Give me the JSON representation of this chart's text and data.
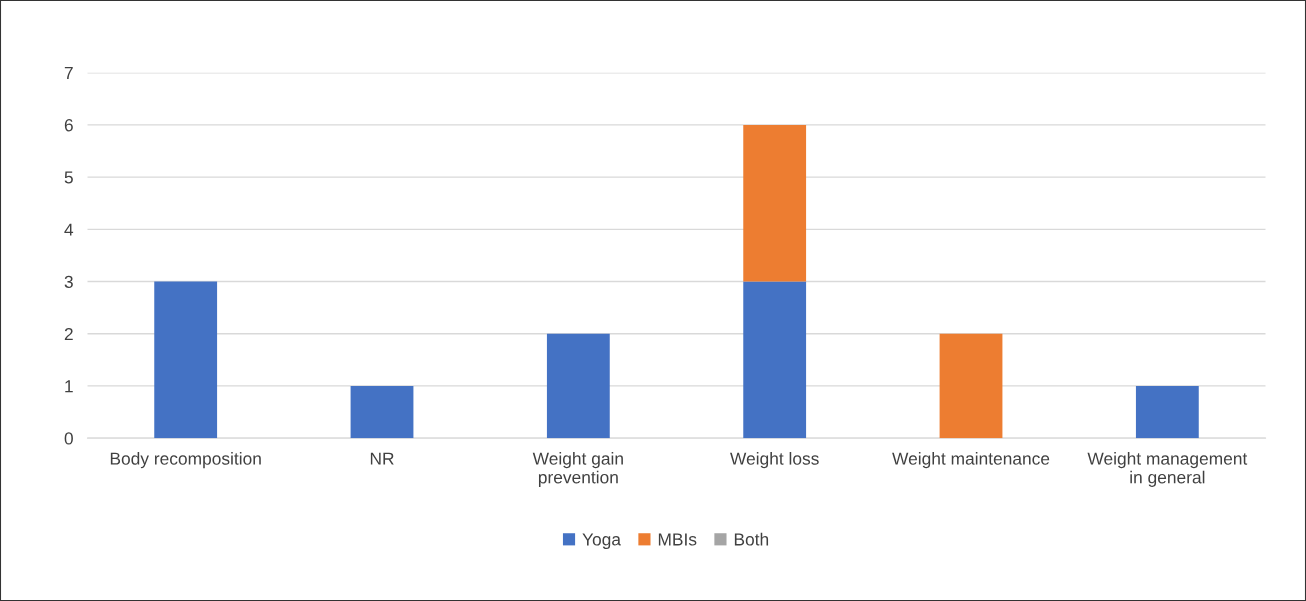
{
  "chart_data": {
    "type": "bar",
    "stacked": true,
    "categories": [
      "Body recomposition",
      "NR",
      "Weight gain\nprevention",
      "Weight loss",
      "Weight maintenance",
      "Weight management\nin general"
    ],
    "series": [
      {
        "name": "Yoga",
        "color": "#4472c4",
        "values": [
          3,
          1,
          2,
          3,
          0,
          1
        ]
      },
      {
        "name": "MBIs",
        "color": "#ed7d31",
        "values": [
          0,
          0,
          0,
          3,
          2,
          0
        ]
      },
      {
        "name": "Both",
        "color": "#a5a5a5",
        "values": [
          0,
          0,
          0,
          0,
          0,
          0
        ]
      }
    ],
    "ylim": [
      0,
      7
    ],
    "yticks": [
      0,
      1,
      2,
      3,
      4,
      5,
      6,
      7
    ],
    "grid": "y",
    "legend": "bottom"
  }
}
